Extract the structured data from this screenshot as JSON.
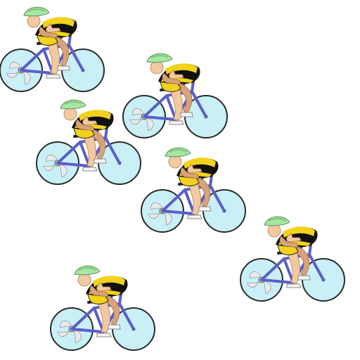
{
  "scene": {
    "background": "#ffffff",
    "cyclist_count": 6
  },
  "palette": {
    "helmet": "#a8e6a3",
    "helmet_stripe": "#7cc47a",
    "skin": "#f2c9a0",
    "skin_shade": "#d9a37a",
    "jersey_black": "#111111",
    "jersey_yellow": "#f2d21a",
    "shorts_yellow": "#f2d21a",
    "frame": "#5a5fc8",
    "frame_dark": "#3b3f9a",
    "wheel_fill": "#c9f0f7",
    "wheel_rim": "#2b2b2b",
    "disc_spoke": "#e8e8e8",
    "shoe": "#f4f4f4",
    "shoe_shade": "#9a9a9a"
  },
  "icons": [
    "cyclist-icon",
    "bicycle-icon",
    "disc-wheel-icon",
    "spoked-wheel-icon"
  ]
}
